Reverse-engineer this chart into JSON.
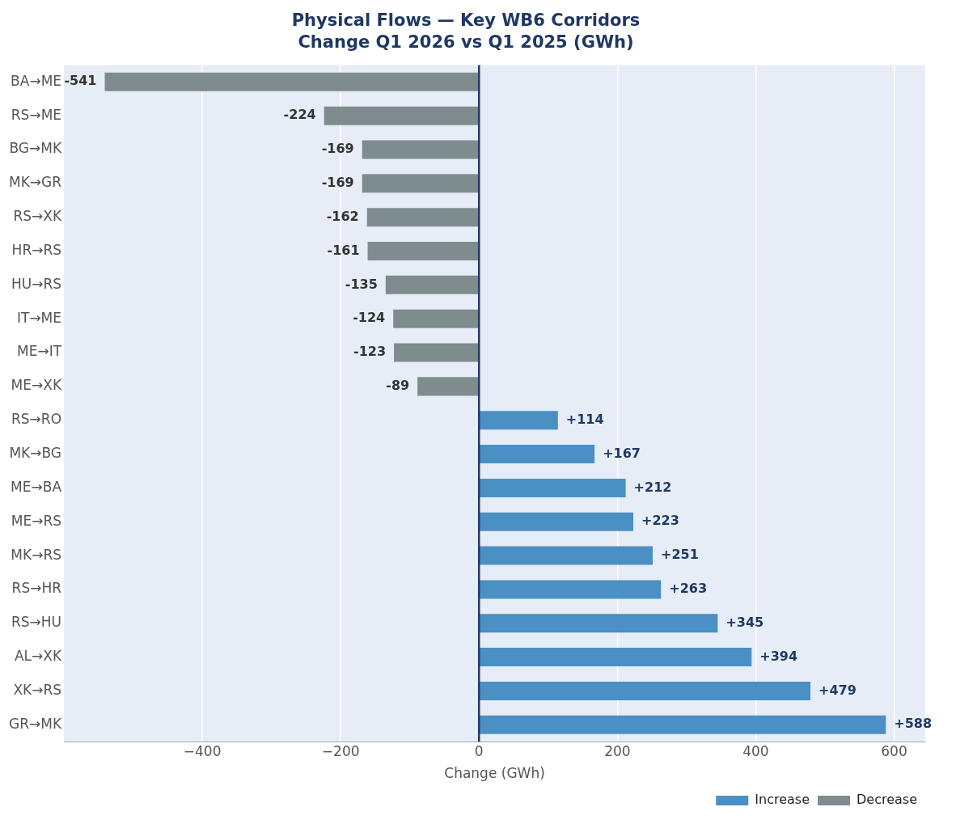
{
  "chart_data": {
    "type": "bar",
    "orientation": "horizontal",
    "stacked": true,
    "title": "Physical Flows — Key WB6 Corridors",
    "subtitle": "Change Q1 2026 vs Q1 2025 (GWh)",
    "xlabel": "Change (GWh)",
    "categories": [
      "BA→ME",
      "RS→ME",
      "BG→MK",
      "MK→GR",
      "RS→XK",
      "HR→RS",
      "HU→RS",
      "IT→ME",
      "ME→IT",
      "ME→XK",
      "RS→RO",
      "MK→BG",
      "ME→BA",
      "ME→RS",
      "MK→RS",
      "RS→HR",
      "RS→HU",
      "AL→XK",
      "XK→RS",
      "GR→MK"
    ],
    "series": [
      {
        "name": "Increase",
        "color": "#4a90c4",
        "values": [
          null,
          null,
          null,
          null,
          null,
          null,
          null,
          null,
          null,
          null,
          114,
          167,
          212,
          223,
          251,
          263,
          345,
          394,
          479,
          588
        ],
        "value_labels": [
          null,
          null,
          null,
          null,
          null,
          null,
          null,
          null,
          null,
          null,
          "+114",
          "+167",
          "+212",
          "+223",
          "+251",
          "+263",
          "+345",
          "+394",
          "+479",
          "+588"
        ]
      },
      {
        "name": "Decrease",
        "color": "#7f8c8d",
        "values": [
          -541,
          -224,
          -169,
          -169,
          -162,
          -161,
          -135,
          -124,
          -123,
          -89,
          null,
          null,
          null,
          null,
          null,
          null,
          null,
          null,
          null,
          null
        ],
        "value_labels": [
          "-541",
          "-224",
          "-169",
          "-169",
          "-162",
          "-161",
          "-135",
          "-124",
          "-123",
          "-89",
          null,
          null,
          null,
          null,
          null,
          null,
          null,
          null,
          null,
          null
        ]
      }
    ],
    "xlim": [
      -600,
      645
    ],
    "xticks": [
      {
        "value": -400,
        "label": "−400"
      },
      {
        "value": -200,
        "label": "−200"
      },
      0,
      200,
      400,
      600
    ],
    "grid": "x",
    "legend": "bottom right",
    "ref_lines": [
      {
        "axis": "x",
        "value": 0,
        "color": "#1f3864"
      }
    ]
  }
}
